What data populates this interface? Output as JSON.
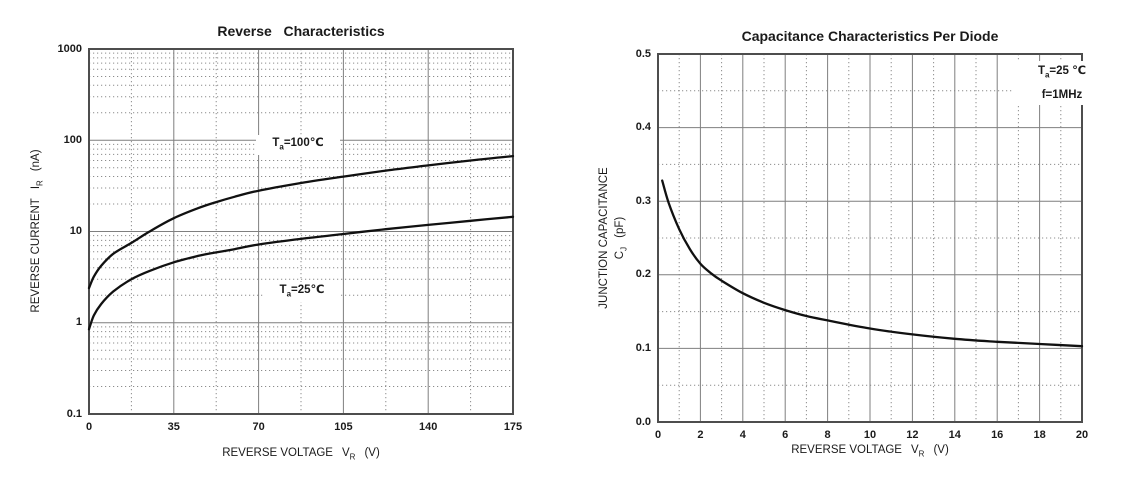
{
  "figure": {
    "background": "#ffffff",
    "text_color": "#1a1a1a",
    "frame_color": "#4d4d4d",
    "grid_major_color": "#7f7f7f",
    "grid_minor_color": "#8c8c8c",
    "curve_color": "#111111"
  },
  "chart_data": [
    {
      "type": "line",
      "title": "Reverse   Characteristics",
      "xlabel": "REVERSE VOLTAGE  VR  (V)",
      "ylabel": "REVERSE CURRENT  IR  (nA)",
      "xlabel_parts": {
        "pre": "REVERSE VOLTAGE",
        "sym": "V",
        "sub": "R",
        "post": "(V)"
      },
      "ylabel_parts": {
        "pre": "REVERSE CURRENT",
        "sym": "I",
        "sub": "R",
        "post": "(nA)"
      },
      "x_scale": "linear",
      "y_scale": "log",
      "xlim": [
        0,
        175
      ],
      "ylim": [
        0.1,
        1000
      ],
      "x_ticks": [
        0,
        35,
        70,
        105,
        140,
        175
      ],
      "x_tick_labels": [
        "0",
        "35",
        "70",
        "105",
        "140",
        "175"
      ],
      "y_ticks": [
        1000,
        100,
        10,
        1,
        0.1
      ],
      "y_tick_labels": [
        "1000",
        "100",
        "10",
        "1",
        "0.1"
      ],
      "x_minor_ticks": [
        17.5,
        52.5,
        87.5,
        122.5,
        157.5
      ],
      "y_minor_ticks": [
        0.2,
        0.3,
        0.4,
        0.5,
        0.6,
        0.7,
        0.8,
        0.9,
        2,
        3,
        4,
        5,
        6,
        7,
        8,
        9,
        20,
        30,
        40,
        50,
        60,
        70,
        80,
        90,
        200,
        300,
        400,
        500,
        600,
        700,
        800,
        900
      ],
      "grid": "major solid gray, minor dotted gray",
      "legend": "none (curves labeled inline)",
      "series": [
        {
          "name": "Ta=100℃",
          "x": [
            0,
            2,
            5,
            10,
            17.5,
            25,
            35,
            45,
            52.5,
            60,
            70,
            87.5,
            105,
            122.5,
            140,
            157.5,
            175
          ],
          "y": [
            2.4,
            3.2,
            4.2,
            5.7,
            7.5,
            10,
            14,
            18,
            21,
            24,
            28,
            34,
            40,
            46.5,
            53,
            60,
            67
          ]
        },
        {
          "name": "Ta=25℃",
          "x": [
            0,
            2,
            5,
            10,
            17.5,
            25,
            35,
            45,
            52.5,
            60,
            70,
            87.5,
            105,
            122.5,
            140,
            157.5,
            175
          ],
          "y": [
            0.85,
            1.2,
            1.6,
            2.2,
            3.0,
            3.7,
            4.6,
            5.4,
            5.9,
            6.4,
            7.2,
            8.3,
            9.4,
            10.6,
            11.8,
            13.1,
            14.5
          ]
        }
      ],
      "annotations": [
        {
          "sym": "T",
          "sub": "a",
          "post": "=100℃",
          "anchor_x": 86,
          "anchor_y": 100
        },
        {
          "sym": "T",
          "sub": "a",
          "post": "=25℃",
          "anchor_x": 88,
          "anchor_y": 2.3
        }
      ]
    },
    {
      "type": "line",
      "title": "Capacitance Characteristics Per Diode",
      "xlabel": "REVERSE VOLTAGE  VR  (V)",
      "ylabel": "JUNCTION CAPACITANCE  CJ  (pF)",
      "xlabel_parts": {
        "pre": "REVERSE VOLTAGE",
        "sym": "V",
        "sub": "R",
        "post": "(V)"
      },
      "ylabel_parts": {
        "pre": "JUNCTION CAPACITANCE",
        "sym": "C",
        "sub": "J",
        "post": "(pF)"
      },
      "x_scale": "linear",
      "y_scale": "linear",
      "xlim": [
        0,
        20
      ],
      "ylim": [
        0,
        0.5
      ],
      "x_ticks": [
        0,
        2,
        4,
        6,
        8,
        10,
        12,
        14,
        16,
        18,
        20
      ],
      "x_tick_labels": [
        "0",
        "2",
        "4",
        "6",
        "8",
        "10",
        "12",
        "14",
        "16",
        "18",
        "20"
      ],
      "y_ticks": [
        0.5,
        0.4,
        0.3,
        0.2,
        0.1,
        0.0
      ],
      "y_tick_labels": [
        "0.5",
        "0.4",
        "0.3",
        "0.2",
        "0.1",
        "0.0"
      ],
      "x_minor_ticks": [
        1,
        3,
        5,
        7,
        9,
        11,
        13,
        15,
        17,
        19
      ],
      "y_minor_ticks": [
        0.05,
        0.15,
        0.25,
        0.35,
        0.45
      ],
      "grid": "major solid gray, minor dotted gray",
      "legend": "none (conditions labeled inline)",
      "series": [
        {
          "name": "Ta=25℃, f=1MHz",
          "x": [
            0.2,
            0.5,
            1,
            1.5,
            2,
            2.5,
            3,
            4,
            5,
            6,
            7,
            8,
            10,
            12,
            14,
            16,
            18,
            20
          ],
          "y": [
            0.328,
            0.298,
            0.262,
            0.235,
            0.215,
            0.202,
            0.192,
            0.175,
            0.162,
            0.152,
            0.144,
            0.138,
            0.127,
            0.119,
            0.113,
            0.109,
            0.106,
            0.103
          ]
        }
      ],
      "annotations": [
        {
          "sym": "T",
          "sub": "a",
          "post": "=25 ℃"
        },
        {
          "text": "f=1MHz"
        }
      ]
    }
  ]
}
